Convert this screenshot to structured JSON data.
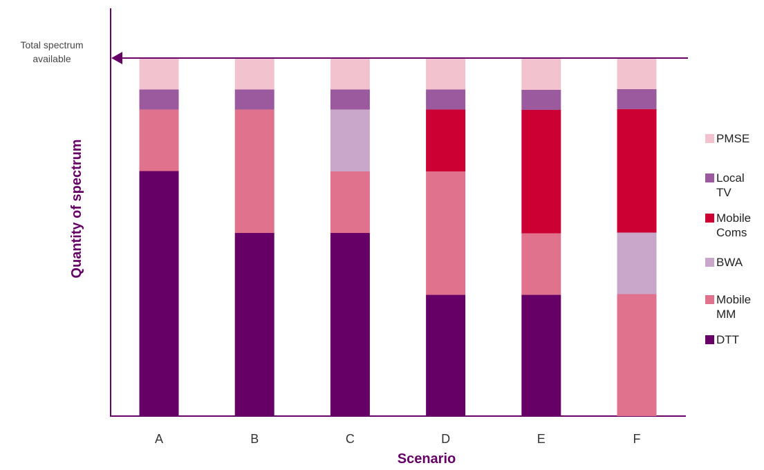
{
  "chart_data": {
    "type": "stacked-bar",
    "annotation": "Total spectrum available",
    "x_label": "Scenario",
    "y_label": "Quantity of spectrum",
    "categories": [
      "A",
      "B",
      "C",
      "D",
      "E",
      "F"
    ],
    "ylim": [
      0,
      114
    ],
    "series": [
      {
        "name": "DTT",
        "color": "#660066",
        "values": [
          68.5,
          51.2,
          51.2,
          33.9,
          33.9,
          0
        ]
      },
      {
        "name": "Mobile MM",
        "color": "#e0728e",
        "values": [
          17.2,
          34.5,
          17.2,
          34.5,
          17.2,
          34.1
        ]
      },
      {
        "name": "BWA",
        "color": "#c9a7ca",
        "values": [
          0,
          0,
          17.3,
          0,
          0,
          17.2
        ]
      },
      {
        "name": "Mobile Coms",
        "color": "#cc0033",
        "values": [
          0,
          0,
          0,
          17.3,
          34.5,
          34.5
        ]
      },
      {
        "name": "Local TV",
        "color": "#9b5a9e",
        "values": [
          5.6,
          5.6,
          5.6,
          5.6,
          5.6,
          5.6
        ]
      },
      {
        "name": "PMSE",
        "color": "#f2c3cf",
        "values": [
          8.7,
          8.7,
          8.7,
          8.7,
          8.7,
          8.7
        ]
      }
    ]
  }
}
